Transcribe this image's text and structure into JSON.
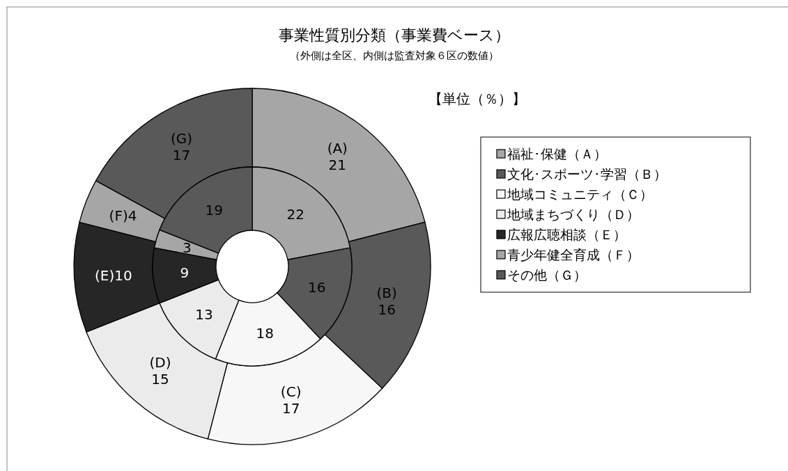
{
  "chart_data": {
    "type": "donut",
    "title": "事業性質別分類（事業費ベース）",
    "subtitle": "（外側は全区、内側は監査対象６区の数値）",
    "annotations": [
      "【単位（％）】"
    ],
    "categories": [
      "福祉･保健（Ａ）",
      "文化･スポーツ･学習（Ｂ）",
      "地域コミュニティ（Ｃ）",
      "地域まちづくり（Ｄ）",
      "広報広聴相談（Ｅ）",
      "青少年健全育成（Ｆ）",
      "その他（Ｇ）"
    ],
    "colors": [
      "#a6a6a6",
      "#595959",
      "#f7f7f7",
      "#ebebeb",
      "#262626",
      "#a6a6a6",
      "#595959"
    ],
    "legend": "right",
    "series": [
      {
        "values": [
          21,
          16,
          17,
          15,
          10,
          4,
          17
        ],
        "value_labels": [
          "(A)\n21",
          "(B)\n16",
          "(C)\n17",
          "(D)\n15",
          "(E)10",
          "(F)4",
          "(G)\n17"
        ]
      },
      {
        "values": [
          22,
          16,
          18,
          13,
          9,
          3,
          19
        ],
        "value_labels": [
          "22",
          "16",
          "18",
          "13",
          "9",
          "3",
          "19"
        ]
      }
    ]
  }
}
